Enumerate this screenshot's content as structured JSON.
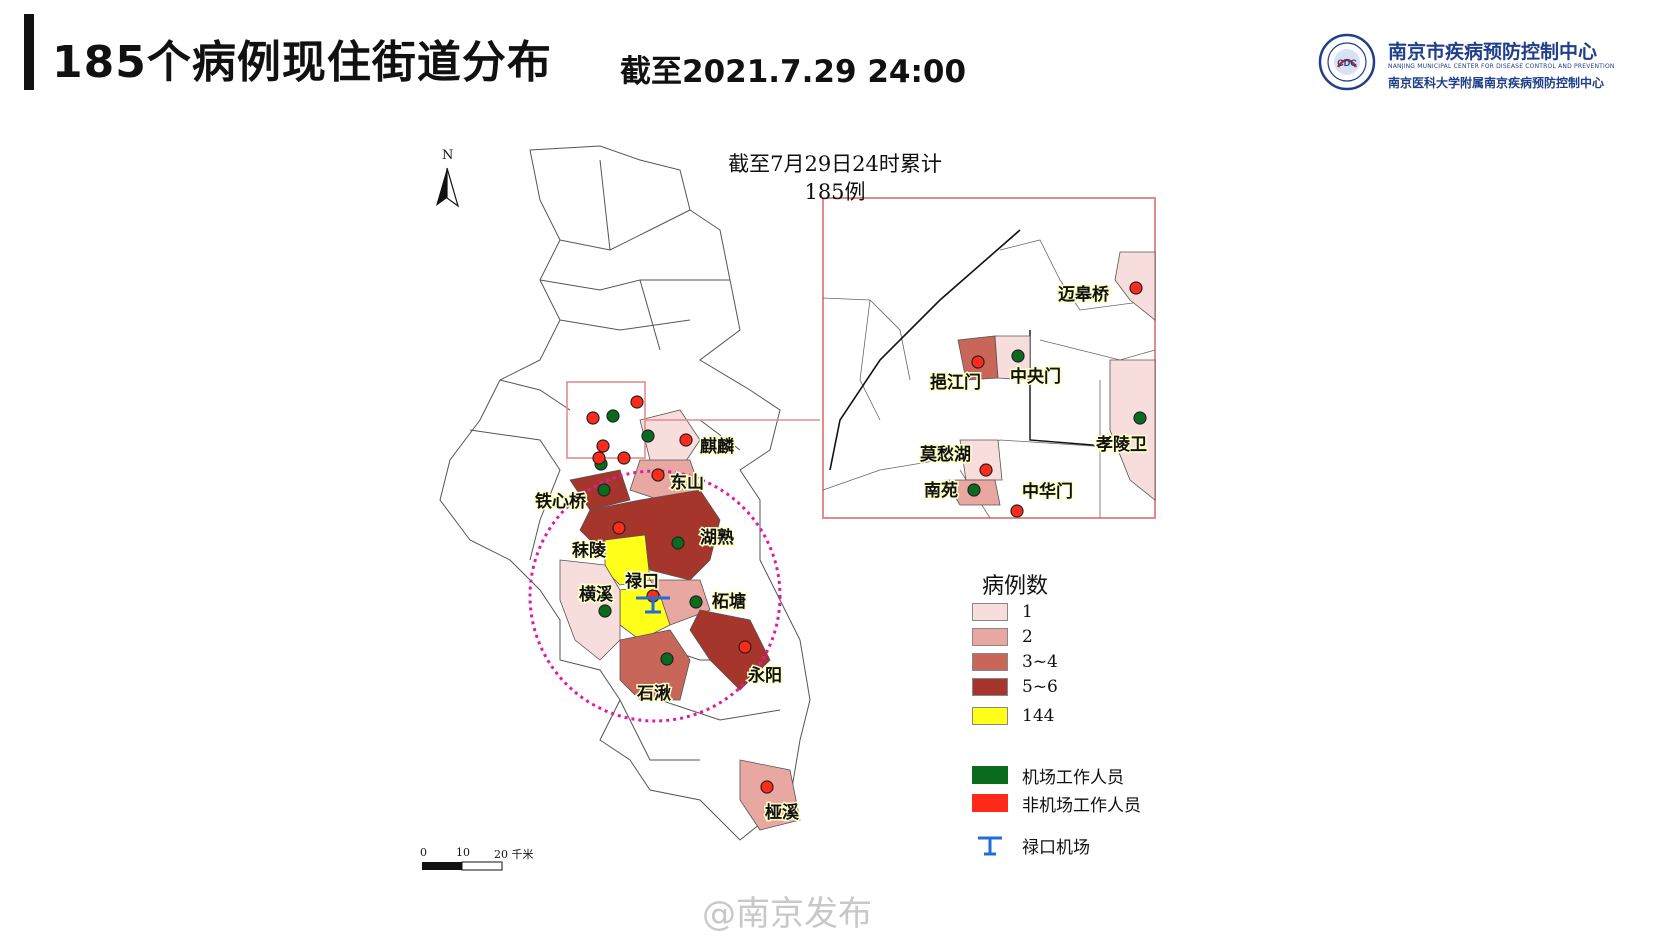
{
  "header": {
    "title": "185个病例现住街道分布",
    "subtitle": "截至2021.7.29 24:00"
  },
  "org": {
    "name": "南京市疾病预防控制中心",
    "name_en": "NANJING MUNICIPAL CENTER FOR DISEASE CONTROL AND PREVENTION",
    "subtitle": "南京医科大学附属南京疾病预防控制中心",
    "color": "#1f3f8a"
  },
  "map": {
    "north_label": "N",
    "title_line1": "截至7月29日24时累计",
    "title_line2": "185例",
    "scale": {
      "labels": [
        "0",
        "10",
        "20 千米"
      ]
    },
    "colors": {
      "level1": "#f7dedd",
      "level2": "#e8a7a0",
      "level3": "#c9665a",
      "level4": "#a6362c",
      "level5": "#ffff1a",
      "airport_staff": "#0a6b1f",
      "non_airport": "#ff2a1a",
      "airport_icon": "#1f6fd6",
      "circle": "#e01aa8",
      "inset_border": "#e58a8a"
    },
    "labels": {
      "qilin": "麒麟",
      "dongshan": "东山",
      "tiexinqiao": "铁心桥",
      "moling": "秣陵",
      "hushu": "湖熟",
      "lukou": "禄口",
      "hengxi": "横溪",
      "zhetang": "柘塘",
      "yongyang": "永阳",
      "shiqiu": "石湫",
      "zhexi": "桠溪"
    },
    "inset_labels": {
      "maigaoqiao": "迈皋桥",
      "yijiangmen": "挹江门",
      "zhongyangmen": "中央门",
      "xiaolingwei": "孝陵卫",
      "mochouhu": "莫愁湖",
      "nanyuan": "南苑",
      "zhonghuamen": "中华门"
    }
  },
  "legend": {
    "title": "病例数",
    "levels": [
      {
        "label": "1"
      },
      {
        "label": "2"
      },
      {
        "label": "3~4"
      },
      {
        "label": "5~6"
      },
      {
        "label": "144"
      }
    ],
    "markers": [
      {
        "label": "机场工作人员"
      },
      {
        "label": "非机场工作人员"
      }
    ],
    "airport": "禄口机场"
  },
  "watermark": "@南京发布"
}
